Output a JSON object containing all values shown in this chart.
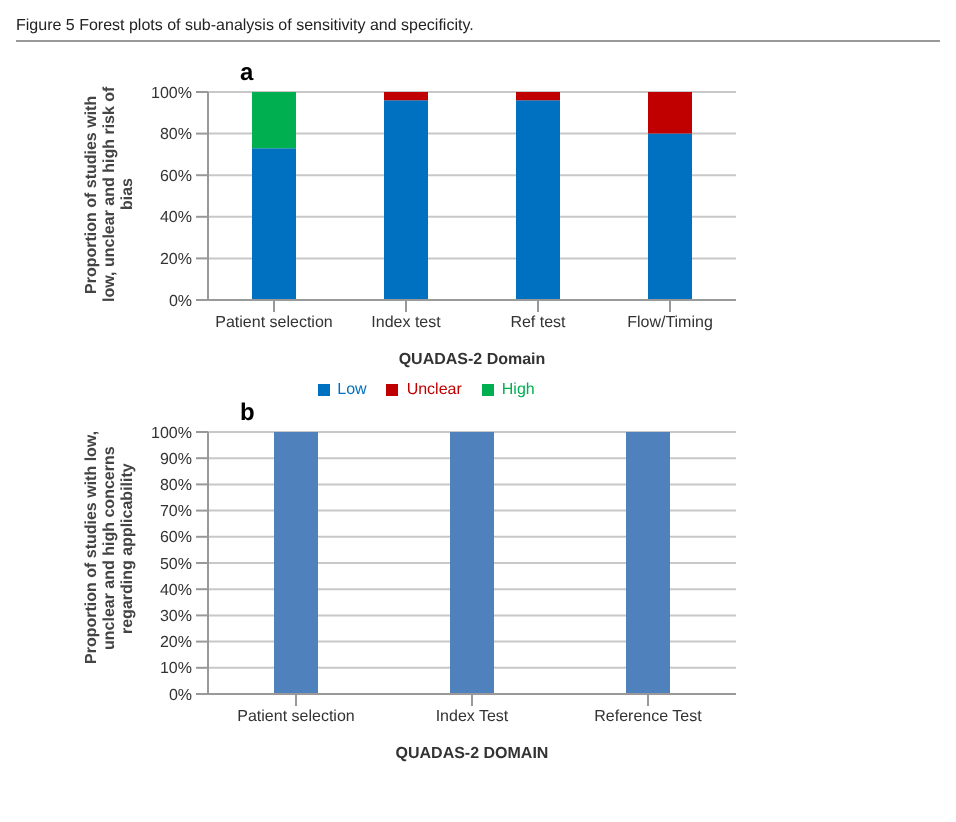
{
  "chart_data": [
    {
      "type": "bar",
      "title": "a",
      "annotations": [
        "Figure 5 Forest plots of sub-analysis of sensitivity and specificity."
      ],
      "categories": [
        "Patient selection",
        "Index test",
        "Ref test",
        "Flow/Timing"
      ],
      "xlabel": "QUADAS-2 Domain",
      "ylabel": "Proportion of studies with low, unclear and high risk of bias",
      "stacked": true,
      "series": [
        {
          "name": "Low",
          "color": "#0070c0",
          "values": [
            73,
            96,
            96,
            80
          ]
        },
        {
          "name": "Unclear",
          "color": "#c00000",
          "values": [
            0,
            4,
            4,
            20
          ]
        },
        {
          "name": "High",
          "color": "#00b050",
          "values": [
            27,
            0,
            0,
            0
          ]
        }
      ],
      "ylim": [
        0,
        100
      ],
      "yticks": [
        {
          "value": 0,
          "label": "0%"
        },
        {
          "value": 20,
          "label": "20%"
        },
        {
          "value": 40,
          "label": "40%"
        },
        {
          "value": 60,
          "label": "60%"
        },
        {
          "value": 80,
          "label": "80%"
        },
        {
          "value": 100,
          "label": "100%"
        }
      ],
      "grid": "y",
      "legend": "bottom"
    },
    {
      "type": "bar",
      "title": "b",
      "categories": [
        "Patient selection",
        "Index Test",
        "Reference Test"
      ],
      "xlabel": "QUADAS-2 DOMAIN",
      "ylabel": "Proportion of studies with low, unclear and high concerns regarding applicability",
      "series": [
        {
          "color": "#4f81bd",
          "values": [
            100,
            100,
            100
          ]
        }
      ],
      "ylim": [
        0,
        100
      ],
      "yticks": [
        {
          "value": 0,
          "label": "0%"
        },
        {
          "value": 10,
          "label": "10%"
        },
        {
          "value": 20,
          "label": "20%"
        },
        {
          "value": 30,
          "label": "30%"
        },
        {
          "value": 40,
          "label": "40%"
        },
        {
          "value": 50,
          "label": "50%"
        },
        {
          "value": 60,
          "label": "60%"
        },
        {
          "value": 70,
          "label": "70%"
        },
        {
          "value": 80,
          "label": "80%"
        },
        {
          "value": 90,
          "label": "90%"
        },
        {
          "value": 100,
          "label": "100%"
        }
      ],
      "grid": "y"
    }
  ]
}
